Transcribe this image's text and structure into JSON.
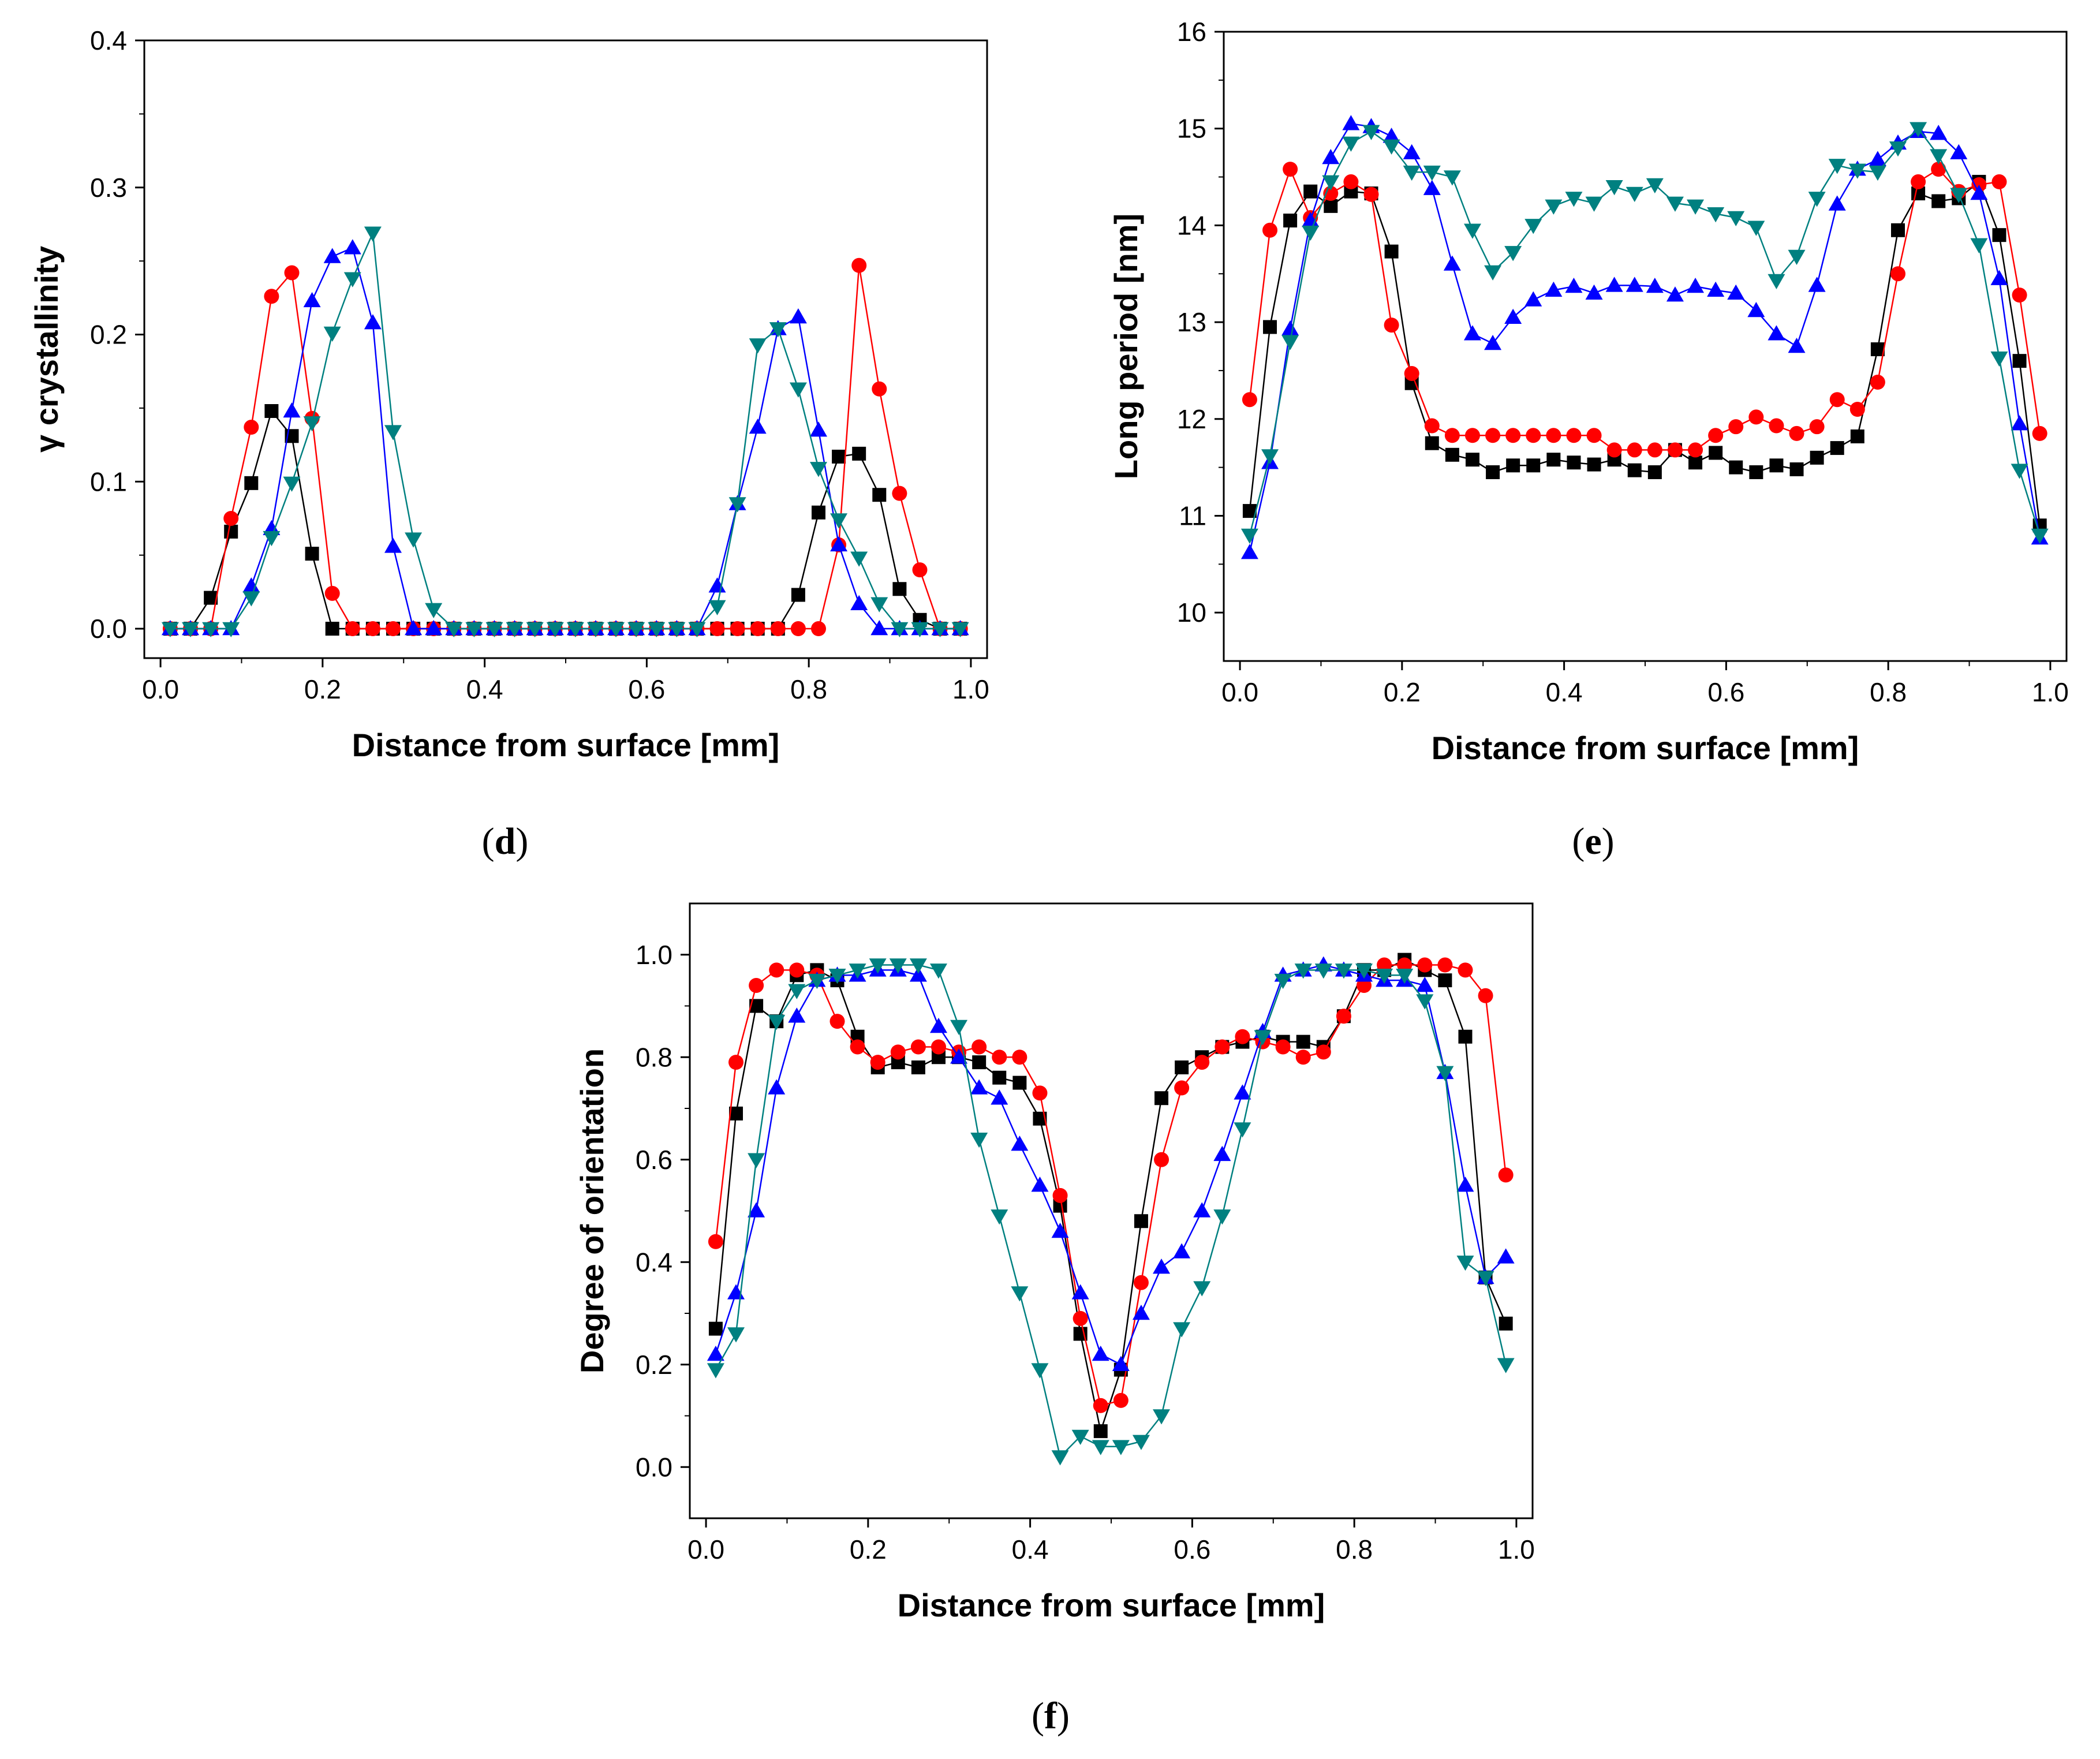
{
  "panel_labels": {
    "d": "d",
    "e": "e",
    "f": "f"
  },
  "colors": {
    "s1": "#000000",
    "s2": "#ff0000",
    "s3": "#0000ff",
    "s4": "#008080"
  },
  "chart_data": [
    {
      "id": "d",
      "type": "line",
      "title": "",
      "xlabel": "Distance from surface [mm]",
      "ylabel": "γ crystallinity",
      "xlim": [
        -0.02,
        1.02
      ],
      "ylim": [
        -0.02,
        0.4
      ],
      "xticks": [
        0.0,
        0.2,
        0.4,
        0.6,
        0.8,
        1.0
      ],
      "xtick_labels": [
        "0.0",
        "0.2",
        "0.4",
        "0.6",
        "0.8",
        "1.0"
      ],
      "yticks": [
        0.0,
        0.1,
        0.2,
        0.3,
        0.4
      ],
      "ytick_labels": [
        "0.0",
        "0.1",
        "0.2",
        "0.3",
        "0.4"
      ],
      "x": [
        0.012,
        0.037,
        0.062,
        0.087,
        0.112,
        0.137,
        0.162,
        0.187,
        0.212,
        0.237,
        0.262,
        0.287,
        0.312,
        0.337,
        0.362,
        0.387,
        0.412,
        0.437,
        0.462,
        0.487,
        0.512,
        0.537,
        0.562,
        0.587,
        0.612,
        0.637,
        0.662,
        0.687,
        0.712,
        0.737,
        0.762,
        0.787,
        0.812,
        0.837,
        0.862,
        0.887,
        0.912,
        0.937,
        0.962,
        0.987
      ],
      "series": [
        {
          "name": "black squares",
          "marker": "square",
          "color": "#000000",
          "values": [
            0,
            0,
            0.021,
            0.066,
            0.099,
            0.148,
            0.131,
            0.051,
            0,
            0,
            0,
            0,
            0,
            0,
            0,
            0,
            0,
            0,
            0,
            0,
            0,
            0,
            0,
            0,
            0,
            0,
            0,
            0,
            0,
            0,
            0,
            0.023,
            0.079,
            0.117,
            0.119,
            0.091,
            0.027,
            0.006,
            0,
            0
          ]
        },
        {
          "name": "red circles",
          "marker": "circle",
          "color": "#ff0000",
          "values": [
            0,
            0,
            0,
            0.075,
            0.137,
            0.226,
            0.242,
            0.143,
            0.024,
            0,
            0,
            0,
            0,
            0,
            0,
            0,
            0,
            0,
            0,
            0,
            0,
            0,
            0,
            0,
            0,
            0,
            0,
            0,
            0,
            0,
            0,
            0,
            0,
            0.057,
            0.247,
            0.163,
            0.092,
            0.04,
            0,
            0
          ]
        },
        {
          "name": "blue triangles up",
          "marker": "triangle-up",
          "color": "#0000ff",
          "values": [
            0,
            0,
            0,
            0,
            0.029,
            0.068,
            0.148,
            0.223,
            0.253,
            0.259,
            0.208,
            0.056,
            0,
            0,
            0,
            0,
            0,
            0,
            0,
            0,
            0,
            0,
            0,
            0,
            0,
            0,
            0,
            0.029,
            0.085,
            0.137,
            0.204,
            0.212,
            0.135,
            0.057,
            0.017,
            0,
            0,
            0,
            0,
            0
          ]
        },
        {
          "name": "teal triangles down",
          "marker": "triangle-down",
          "color": "#008080",
          "values": [
            0,
            0,
            0,
            0,
            0.021,
            0.062,
            0.099,
            0.14,
            0.201,
            0.238,
            0.269,
            0.134,
            0.061,
            0.013,
            0,
            0,
            0,
            0,
            0,
            0,
            0,
            0,
            0,
            0,
            0,
            0,
            0,
            0.015,
            0.085,
            0.193,
            0.204,
            0.163,
            0.109,
            0.074,
            0.048,
            0.017,
            0,
            0,
            0,
            0
          ]
        }
      ]
    },
    {
      "id": "e",
      "type": "line",
      "title": "",
      "xlabel": "Distance from surface [mm]",
      "ylabel": "Long period [nm]",
      "xlim": [
        -0.02,
        1.02
      ],
      "ylim": [
        9.5,
        16
      ],
      "xticks": [
        0.0,
        0.2,
        0.4,
        0.6,
        0.8,
        1.0
      ],
      "xtick_labels": [
        "0.0",
        "0.2",
        "0.4",
        "0.6",
        "0.8",
        "1.0"
      ],
      "yticks": [
        10,
        11,
        12,
        13,
        14,
        15,
        16
      ],
      "ytick_labels": [
        "10",
        "11",
        "12",
        "13",
        "14",
        "15",
        "16"
      ],
      "x": [
        0.012,
        0.037,
        0.062,
        0.087,
        0.112,
        0.137,
        0.162,
        0.187,
        0.212,
        0.237,
        0.262,
        0.287,
        0.312,
        0.337,
        0.362,
        0.387,
        0.412,
        0.437,
        0.462,
        0.487,
        0.512,
        0.537,
        0.562,
        0.587,
        0.612,
        0.637,
        0.662,
        0.687,
        0.712,
        0.737,
        0.762,
        0.787,
        0.812,
        0.837,
        0.862,
        0.887,
        0.912,
        0.937,
        0.962,
        0.987
      ],
      "series": [
        {
          "name": "black squares",
          "marker": "square",
          "color": "#000000",
          "values": [
            11.05,
            12.95,
            14.05,
            14.35,
            14.2,
            14.35,
            14.33,
            13.73,
            12.37,
            11.75,
            11.63,
            11.58,
            11.45,
            11.52,
            11.52,
            11.58,
            11.55,
            11.53,
            11.58,
            11.47,
            11.45,
            11.68,
            11.55,
            11.65,
            11.5,
            11.45,
            11.52,
            11.48,
            11.6,
            11.7,
            11.82,
            12.72,
            13.95,
            14.33,
            14.25,
            14.28,
            14.45,
            13.9,
            12.6,
            10.9
          ]
        },
        {
          "name": "red circles",
          "marker": "circle",
          "color": "#ff0000",
          "values": [
            12.2,
            13.95,
            14.58,
            14.08,
            14.33,
            14.45,
            14.32,
            12.97,
            12.47,
            11.93,
            11.83,
            11.83,
            11.83,
            11.83,
            11.83,
            11.83,
            11.83,
            11.83,
            11.68,
            11.68,
            11.68,
            11.68,
            11.68,
            11.83,
            11.92,
            12.02,
            11.93,
            11.85,
            11.92,
            12.2,
            12.1,
            12.38,
            13.5,
            14.45,
            14.58,
            14.35,
            14.42,
            14.45,
            13.28,
            11.85
          ]
        },
        {
          "name": "blue triangles up",
          "marker": "triangle-up",
          "color": "#0000ff",
          "values": [
            10.62,
            11.55,
            12.93,
            14.05,
            14.7,
            15.05,
            15.02,
            14.92,
            14.75,
            14.38,
            13.6,
            12.88,
            12.78,
            13.05,
            13.23,
            13.33,
            13.37,
            13.3,
            13.38,
            13.38,
            13.37,
            13.28,
            13.37,
            13.33,
            13.3,
            13.12,
            12.88,
            12.75,
            13.38,
            14.22,
            14.58,
            14.68,
            14.85,
            14.97,
            14.95,
            14.75,
            14.33,
            13.45,
            11.95,
            10.77
          ]
        },
        {
          "name": "teal triangles down",
          "marker": "triangle-down",
          "color": "#008080",
          "values": [
            10.8,
            11.62,
            12.8,
            13.93,
            14.45,
            14.85,
            14.97,
            14.82,
            14.55,
            14.55,
            14.5,
            13.95,
            13.52,
            13.72,
            14.0,
            14.2,
            14.28,
            14.23,
            14.4,
            14.33,
            14.42,
            14.23,
            14.2,
            14.12,
            14.08,
            13.98,
            13.43,
            13.68,
            14.28,
            14.62,
            14.57,
            14.55,
            14.8,
            15.0,
            14.72,
            14.32,
            13.8,
            12.63,
            11.47,
            10.8
          ]
        }
      ]
    },
    {
      "id": "f",
      "type": "line",
      "title": "",
      "xlabel": "Distance from surface [mm]",
      "ylabel": "Degree of orientation",
      "xlim": [
        -0.02,
        1.02
      ],
      "ylim": [
        -0.1,
        1.1
      ],
      "xticks": [
        0.0,
        0.2,
        0.4,
        0.6,
        0.8,
        1.0
      ],
      "xtick_labels": [
        "0.0",
        "0.2",
        "0.4",
        "0.6",
        "0.8",
        "1.0"
      ],
      "yticks": [
        0.0,
        0.2,
        0.4,
        0.6,
        0.8,
        1.0
      ],
      "ytick_labels": [
        "0.0",
        "0.2",
        "0.4",
        "0.6",
        "0.8",
        "1.0"
      ],
      "x": [
        0.012,
        0.037,
        0.062,
        0.087,
        0.112,
        0.137,
        0.162,
        0.187,
        0.212,
        0.237,
        0.262,
        0.287,
        0.312,
        0.337,
        0.362,
        0.387,
        0.412,
        0.437,
        0.462,
        0.487,
        0.512,
        0.537,
        0.562,
        0.587,
        0.612,
        0.637,
        0.662,
        0.687,
        0.712,
        0.737,
        0.762,
        0.787,
        0.812,
        0.837,
        0.862,
        0.887,
        0.912,
        0.937,
        0.962,
        0.987
      ],
      "series": [
        {
          "name": "black squares",
          "marker": "square",
          "color": "#000000",
          "values": [
            0.27,
            0.69,
            0.9,
            0.87,
            0.96,
            0.97,
            0.95,
            0.84,
            0.78,
            0.79,
            0.78,
            0.8,
            0.8,
            0.79,
            0.76,
            0.75,
            0.68,
            0.51,
            0.26,
            0.07,
            0.19,
            0.48,
            0.72,
            0.78,
            0.8,
            0.82,
            0.83,
            0.84,
            0.83,
            0.83,
            0.82,
            0.88,
            0.97,
            0.97,
            0.99,
            0.97,
            0.95,
            0.84,
            0.37,
            0.28
          ]
        },
        {
          "name": "red circles",
          "marker": "circle",
          "color": "#ff0000",
          "values": [
            0.44,
            0.79,
            0.94,
            0.97,
            0.97,
            0.96,
            0.87,
            0.82,
            0.79,
            0.81,
            0.82,
            0.82,
            0.81,
            0.82,
            0.8,
            0.8,
            0.73,
            0.53,
            0.29,
            0.12,
            0.13,
            0.36,
            0.6,
            0.74,
            0.79,
            0.82,
            0.84,
            0.83,
            0.82,
            0.8,
            0.81,
            0.88,
            0.94,
            0.98,
            0.98,
            0.98,
            0.98,
            0.97,
            0.92,
            0.57
          ]
        },
        {
          "name": "blue triangles up",
          "marker": "triangle-up",
          "color": "#0000ff",
          "values": [
            0.22,
            0.34,
            0.5,
            0.74,
            0.88,
            0.95,
            0.96,
            0.96,
            0.97,
            0.97,
            0.96,
            0.86,
            0.8,
            0.74,
            0.72,
            0.63,
            0.55,
            0.46,
            0.34,
            0.22,
            0.2,
            0.3,
            0.39,
            0.42,
            0.5,
            0.61,
            0.73,
            0.85,
            0.96,
            0.97,
            0.98,
            0.97,
            0.96,
            0.95,
            0.95,
            0.94,
            0.77,
            0.55,
            0.37,
            0.41
          ]
        },
        {
          "name": "teal triangles down",
          "marker": "triangle-down",
          "color": "#008080",
          "values": [
            0.19,
            0.26,
            0.6,
            0.87,
            0.93,
            0.95,
            0.96,
            0.97,
            0.98,
            0.98,
            0.98,
            0.97,
            0.86,
            0.64,
            0.49,
            0.34,
            0.19,
            0.02,
            0.06,
            0.04,
            0.04,
            0.05,
            0.1,
            0.27,
            0.35,
            0.49,
            0.66,
            0.84,
            0.95,
            0.97,
            0.97,
            0.97,
            0.97,
            0.96,
            0.96,
            0.91,
            0.77,
            0.4,
            0.37,
            0.2
          ]
        }
      ]
    }
  ]
}
